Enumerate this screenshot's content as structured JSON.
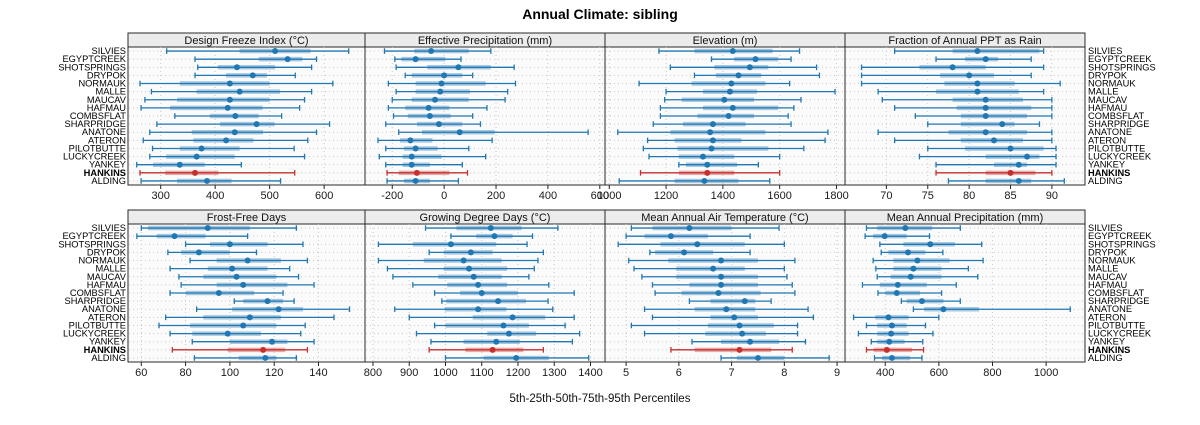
{
  "title": "Annual Climate: sibling",
  "caption": "5th-25th-50th-75th-95th Percentiles",
  "colors": {
    "normal": "#1f77b4",
    "highlight": "#c62f2c",
    "strip_bg": "#ececec",
    "panel_bg": "#fbfbfb",
    "grid": "#c9c9c9",
    "border": "#2a2a2a",
    "tick_text": "#1a1a1a"
  },
  "sites": [
    "SILVIES",
    "EGYPTCREEK",
    "SHOTSPRINGS",
    "DRYPOK",
    "NORMAUK",
    "MALLE",
    "MAUCAV",
    "HAFMAU",
    "COMBSFLAT",
    "SHARPRIDGE",
    "ANATONE",
    "ATERON",
    "PILOTBUTTE",
    "LUCKYCREEK",
    "YANKEY",
    "HANKINS",
    "ALDING"
  ],
  "highlight_site": "HANKINS",
  "chart_data": {
    "type": "dotplot-percentiles-trellis",
    "percentiles": [
      5,
      25,
      50,
      75,
      95
    ],
    "rows_order": "top_to_bottom_matches_sites",
    "grid": "dotted",
    "panels": [
      {
        "title": "Design Freeze Index (°C)",
        "ticks": [
          300,
          400,
          500,
          600
        ],
        "domain": [
          240,
          675
        ],
        "values": [
          [
            311,
            445,
            510,
            575,
            645
          ],
          [
            363,
            480,
            533,
            560,
            586
          ],
          [
            368,
            405,
            440,
            510,
            577
          ],
          [
            363,
            420,
            469,
            495,
            547
          ],
          [
            262,
            335,
            427,
            500,
            616
          ],
          [
            283,
            366,
            445,
            519,
            577
          ],
          [
            271,
            330,
            427,
            500,
            564
          ],
          [
            264,
            317,
            423,
            487,
            555
          ],
          [
            326,
            390,
            437,
            480,
            522
          ],
          [
            293,
            409,
            476,
            509,
            610
          ],
          [
            280,
            357,
            436,
            488,
            586
          ],
          [
            268,
            360,
            420,
            470,
            570
          ],
          [
            285,
            335,
            375,
            445,
            545
          ],
          [
            280,
            310,
            366,
            436,
            564
          ],
          [
            256,
            286,
            335,
            381,
            448
          ],
          [
            262,
            308,
            363,
            406,
            546
          ],
          [
            264,
            330,
            385,
            430,
            520
          ]
        ]
      },
      {
        "title": "Effective Precipitation (mm)",
        "ticks": [
          -200,
          0,
          200,
          400,
          600
        ],
        "domain": [
          -305,
          620
        ],
        "values": [
          [
            -230,
            -115,
            -50,
            95,
            180
          ],
          [
            -190,
            -165,
            -110,
            5,
            65
          ],
          [
            -185,
            -65,
            55,
            180,
            270
          ],
          [
            -150,
            -125,
            0,
            70,
            110
          ],
          [
            -215,
            -110,
            -10,
            160,
            275
          ],
          [
            -185,
            -110,
            -15,
            100,
            245
          ],
          [
            -200,
            -125,
            -35,
            95,
            235
          ],
          [
            -215,
            -150,
            -60,
            20,
            165
          ],
          [
            -195,
            -140,
            -55,
            25,
            110
          ],
          [
            -225,
            -105,
            -20,
            70,
            140
          ],
          [
            -175,
            -85,
            60,
            195,
            555
          ],
          [
            -255,
            -170,
            -130,
            -45,
            185
          ],
          [
            -225,
            -155,
            -110,
            -25,
            95
          ],
          [
            -250,
            -160,
            -125,
            -10,
            160
          ],
          [
            -225,
            -160,
            -125,
            -55,
            70
          ],
          [
            -220,
            -175,
            -105,
            20,
            90
          ],
          [
            -220,
            -155,
            -110,
            -55,
            55
          ]
        ]
      },
      {
        "title": "Elevation (m)",
        "ticks": [
          1000,
          1200,
          1400,
          1600,
          1800
        ],
        "domain": [
          985,
          1830
        ],
        "values": [
          [
            1175,
            1300,
            1435,
            1575,
            1670
          ],
          [
            1360,
            1440,
            1515,
            1595,
            1640
          ],
          [
            1215,
            1370,
            1495,
            1560,
            1730
          ],
          [
            1300,
            1375,
            1455,
            1535,
            1740
          ],
          [
            1105,
            1290,
            1430,
            1550,
            1635
          ],
          [
            1200,
            1330,
            1425,
            1520,
            1795
          ],
          [
            1195,
            1255,
            1405,
            1510,
            1675
          ],
          [
            1180,
            1330,
            1435,
            1595,
            1650
          ],
          [
            1180,
            1310,
            1420,
            1510,
            1630
          ],
          [
            1155,
            1260,
            1365,
            1480,
            1640
          ],
          [
            1030,
            1215,
            1355,
            1550,
            1770
          ],
          [
            1135,
            1230,
            1365,
            1465,
            1760
          ],
          [
            1120,
            1240,
            1360,
            1560,
            1685
          ],
          [
            1140,
            1245,
            1330,
            1440,
            1600
          ],
          [
            1245,
            1270,
            1345,
            1450,
            1525
          ],
          [
            1110,
            1245,
            1345,
            1440,
            1600
          ],
          [
            1035,
            1230,
            1335,
            1455,
            1565
          ]
        ]
      },
      {
        "title": "Fraction of Annual PPT as Rain",
        "ticks": [
          70,
          75,
          80,
          85,
          90
        ],
        "domain": [
          65,
          94
        ],
        "values": [
          [
            71,
            78,
            81,
            88.5,
            89
          ],
          [
            76,
            79.5,
            82,
            83.5,
            87.5
          ],
          [
            67,
            74,
            78,
            82,
            89
          ],
          [
            67,
            76.5,
            80,
            83,
            87.5
          ],
          [
            67,
            77,
            81,
            85.5,
            91
          ],
          [
            69,
            76,
            81,
            86,
            89
          ],
          [
            69.5,
            78,
            82,
            86.5,
            90
          ],
          [
            71,
            78.5,
            82,
            87.5,
            90
          ],
          [
            73.5,
            79,
            82,
            87,
            90
          ],
          [
            75,
            79,
            84,
            85.5,
            88.5
          ],
          [
            69,
            77.5,
            82,
            87,
            90
          ],
          [
            71,
            79,
            83,
            86.5,
            90
          ],
          [
            75,
            79.5,
            85,
            89,
            90.5
          ],
          [
            74,
            82,
            87,
            88.5,
            90.5
          ],
          [
            76,
            83,
            86,
            87,
            90.5
          ],
          [
            76,
            82,
            85,
            88,
            90
          ],
          [
            77.5,
            82,
            86,
            87.5,
            91.5
          ]
        ]
      },
      {
        "title": "Frost-Free Days",
        "ticks": [
          60,
          80,
          100,
          120,
          140
        ],
        "domain": [
          54,
          161
        ],
        "values": [
          [
            60,
            63,
            90,
            109,
            130
          ],
          [
            58,
            67,
            75,
            89,
            108
          ],
          [
            80,
            91,
            100,
            117,
            133
          ],
          [
            72,
            78,
            86,
            100,
            112
          ],
          [
            82,
            94,
            108,
            123,
            135
          ],
          [
            73,
            90,
            101,
            117,
            127
          ],
          [
            77,
            88,
            103,
            121,
            131
          ],
          [
            78,
            94,
            106,
            126,
            138
          ],
          [
            73,
            80,
            95,
            111,
            124
          ],
          [
            102,
            106,
            117,
            124,
            129
          ],
          [
            85,
            101,
            122,
            133,
            154
          ],
          [
            71,
            88,
            109,
            123,
            147
          ],
          [
            68,
            82,
            106,
            121,
            134
          ],
          [
            73,
            83,
            99,
            114,
            132
          ],
          [
            83,
            100,
            119,
            126,
            138
          ],
          [
            74,
            99,
            115,
            125,
            135
          ],
          [
            84,
            104,
            116,
            121,
            130
          ]
        ]
      },
      {
        "title": "Growing Degree Days (°C)",
        "ticks": [
          800,
          900,
          1000,
          1100,
          1200,
          1300,
          1400
        ],
        "domain": [
          778,
          1440
        ],
        "values": [
          [
            945,
            1030,
            1125,
            1210,
            1310
          ],
          [
            1015,
            1085,
            1135,
            1185,
            1240
          ],
          [
            815,
            910,
            1015,
            1140,
            1225
          ],
          [
            955,
            995,
            1070,
            1130,
            1270
          ],
          [
            815,
            940,
            1050,
            1155,
            1255
          ],
          [
            840,
            995,
            1065,
            1170,
            1245
          ],
          [
            855,
            980,
            1078,
            1155,
            1230
          ],
          [
            910,
            1005,
            1090,
            1170,
            1285
          ],
          [
            970,
            1040,
            1100,
            1200,
            1355
          ],
          [
            990,
            1002,
            1145,
            1222,
            1283
          ],
          [
            860,
            998,
            1090,
            1168,
            1296
          ],
          [
            900,
            1075,
            1185,
            1275,
            1355
          ],
          [
            970,
            1000,
            1160,
            1230,
            1330
          ],
          [
            920,
            1115,
            1175,
            1250,
            1370
          ],
          [
            960,
            1050,
            1140,
            1205,
            1350
          ],
          [
            955,
            1055,
            1130,
            1215,
            1270
          ],
          [
            1000,
            1105,
            1195,
            1285,
            1395
          ]
        ]
      },
      {
        "title": "Mean Annual Air Temperature (°C)",
        "ticks": [
          5,
          6,
          7,
          8,
          9
        ],
        "domain": [
          4.6,
          9.15
        ],
        "values": [
          [
            5.1,
            5.5,
            6.2,
            7.0,
            7.9
          ],
          [
            5.0,
            5.35,
            5.85,
            6.55,
            7.35
          ],
          [
            4.85,
            5.65,
            6.35,
            7.25,
            8.0
          ],
          [
            5.45,
            5.55,
            6.1,
            6.65,
            7.35
          ],
          [
            5.05,
            5.8,
            6.8,
            7.5,
            8.2
          ],
          [
            5.15,
            5.95,
            6.65,
            7.25,
            8.0
          ],
          [
            5.3,
            5.95,
            6.8,
            7.5,
            8.05
          ],
          [
            5.5,
            6.2,
            6.8,
            7.5,
            8.15
          ],
          [
            5.55,
            6.05,
            6.75,
            7.55,
            8.2
          ],
          [
            6.2,
            6.6,
            7.25,
            7.45,
            7.75
          ],
          [
            5.35,
            6.3,
            6.9,
            7.45,
            8.45
          ],
          [
            5.5,
            6.6,
            7.05,
            7.5,
            8.55
          ],
          [
            5.1,
            6.55,
            7.15,
            7.8,
            8.25
          ],
          [
            5.35,
            6.5,
            7.2,
            7.65,
            8.25
          ],
          [
            6.25,
            6.8,
            7.35,
            7.9,
            8.4
          ],
          [
            5.85,
            6.3,
            7.15,
            7.75,
            8.15
          ],
          [
            6.8,
            7.1,
            7.5,
            8.0,
            8.85
          ]
        ]
      },
      {
        "title": "Mean Annual Precipitation (mm)",
        "ticks": [
          400,
          600,
          800,
          1000
        ],
        "domain": [
          250,
          1145
        ],
        "values": [
          [
            330,
            370,
            475,
            575,
            680
          ],
          [
            325,
            355,
            398,
            480,
            565
          ],
          [
            380,
            468,
            568,
            660,
            760
          ],
          [
            385,
            412,
            485,
            550,
            615
          ],
          [
            355,
            430,
            520,
            640,
            765
          ],
          [
            365,
            430,
            505,
            610,
            710
          ],
          [
            370,
            420,
            495,
            610,
            745
          ],
          [
            315,
            380,
            447,
            555,
            665
          ],
          [
            373,
            400,
            443,
            530,
            610
          ],
          [
            460,
            480,
            537,
            617,
            680
          ],
          [
            505,
            545,
            617,
            750,
            1090
          ],
          [
            282,
            363,
            412,
            487,
            600
          ],
          [
            330,
            370,
            425,
            480,
            550
          ],
          [
            300,
            370,
            422,
            487,
            578
          ],
          [
            348,
            370,
            415,
            472,
            540
          ],
          [
            330,
            357,
            406,
            500,
            543
          ],
          [
            360,
            388,
            425,
            493,
            537
          ]
        ]
      }
    ]
  }
}
